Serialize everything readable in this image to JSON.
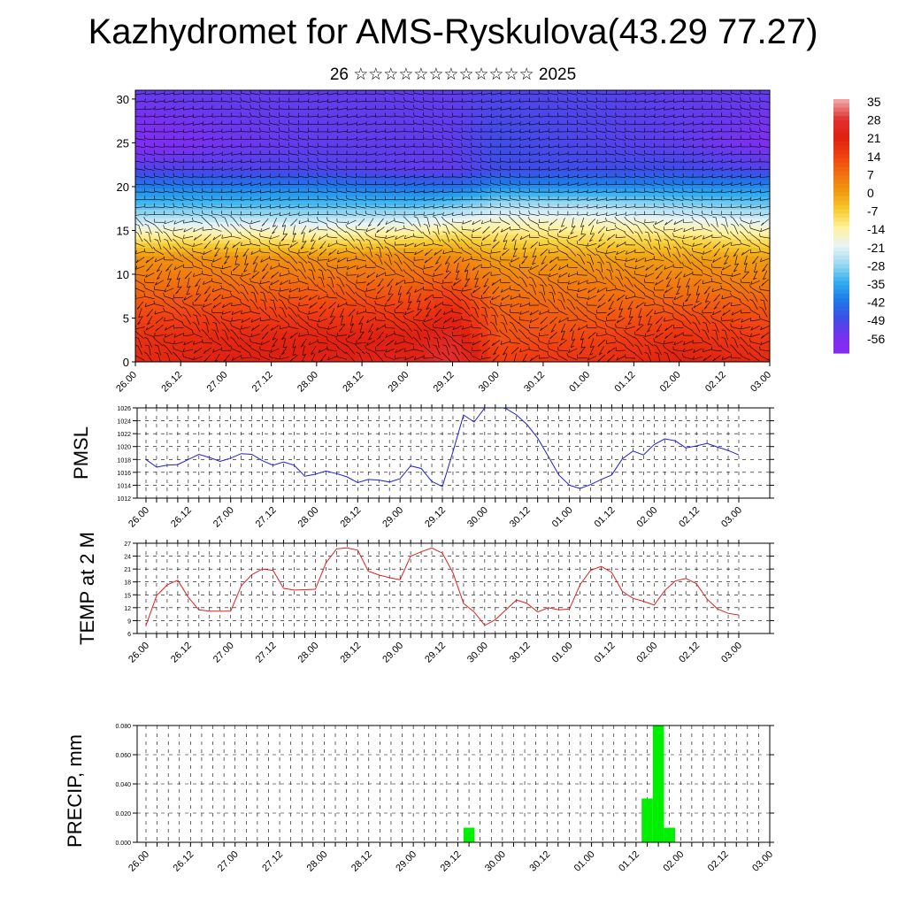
{
  "header": {
    "title": "Kazhydromet for AMS-Ryskulova(43.29 77.27)",
    "subtitle": "26 ☆☆☆☆☆☆☆☆☆☆☆☆ 2025"
  },
  "colors": {
    "pmsl_line": "#1f1fd6",
    "temp_line": "#e02020",
    "precip_bar": "#00ee00",
    "wind_barbs": "#000000"
  },
  "chart_data": [
    {
      "type": "heatmap",
      "name": "cross-section",
      "variable": "temperature",
      "overlay": "wind barbs",
      "x_ticks": [
        "26.00",
        "26.12",
        "27.00",
        "27.12",
        "28.00",
        "28.12",
        "29.00",
        "29.12",
        "30.00",
        "30.12",
        "01.00",
        "01.12",
        "02.00",
        "02.12",
        "03.00"
      ],
      "y_ticks": [
        0,
        5,
        10,
        15,
        20,
        25,
        30
      ],
      "ylim": [
        0,
        31
      ],
      "colorbar_labels": [
        35,
        28,
        21,
        14,
        7,
        0,
        -7,
        -14,
        -21,
        -28,
        -35,
        -42,
        -49,
        -56
      ],
      "colorbar_colors": [
        "#f0a0a0",
        "#e03030",
        "#e02010",
        "#f04010",
        "#f07010",
        "#f09a10",
        "#f6cc30",
        "#fff2a0",
        "#e8f4f8",
        "#9ad8f0",
        "#30aef0",
        "#2077e8",
        "#3f4de8",
        "#7a30f0",
        "#8a2af2"
      ],
      "profiles": [
        {
          "t": 0,
          "levels": [
            [
              0,
              22
            ],
            [
              3,
              20
            ],
            [
              6,
              15
            ],
            [
              9,
              10
            ],
            [
              12,
              4
            ],
            [
              14,
              -8
            ],
            [
              16,
              -20
            ],
            [
              18,
              -30
            ],
            [
              20,
              -38
            ],
            [
              22,
              -48
            ],
            [
              25,
              -56
            ],
            [
              31,
              -50
            ]
          ]
        },
        {
          "t": 1,
          "levels": [
            [
              0,
              24
            ],
            [
              3,
              22
            ],
            [
              6,
              16
            ],
            [
              9,
              10
            ],
            [
              12,
              4
            ],
            [
              14,
              -8
            ],
            [
              16,
              -20
            ],
            [
              18,
              -30
            ],
            [
              20,
              -38
            ],
            [
              22,
              -48
            ],
            [
              25,
              -52
            ],
            [
              31,
              -50
            ]
          ]
        },
        {
          "t": 2,
          "levels": [
            [
              0,
              25
            ],
            [
              3,
              23
            ],
            [
              6,
              17
            ],
            [
              9,
              11
            ],
            [
              12,
              4
            ],
            [
              14,
              -8
            ],
            [
              16,
              -20
            ],
            [
              18,
              -30
            ],
            [
              20,
              -38
            ],
            [
              22,
              -48
            ],
            [
              25,
              -50
            ],
            [
              31,
              -50
            ]
          ]
        },
        {
          "t": 3.1,
          "levels": [
            [
              0,
              26
            ],
            [
              3,
              24
            ],
            [
              6,
              18
            ],
            [
              9,
              12
            ],
            [
              12,
              6
            ],
            [
              14,
              -6
            ],
            [
              16,
              -18
            ],
            [
              18,
              -30
            ],
            [
              20,
              -40
            ],
            [
              22,
              -50
            ],
            [
              25,
              -50
            ],
            [
              31,
              -50
            ]
          ]
        },
        {
          "t": 3.5,
          "levels": [
            [
              0,
              32
            ],
            [
              3,
              28
            ],
            [
              6,
              22
            ],
            [
              9,
              14
            ],
            [
              12,
              6
            ],
            [
              14,
              -4
            ],
            [
              16,
              -16
            ],
            [
              18,
              -28
            ],
            [
              20,
              -40
            ],
            [
              22,
              -50
            ],
            [
              25,
              -50
            ],
            [
              31,
              -50
            ]
          ]
        },
        {
          "t": 4,
          "levels": [
            [
              0,
              18
            ],
            [
              3,
              14
            ],
            [
              6,
              12
            ],
            [
              9,
              8
            ],
            [
              12,
              2
            ],
            [
              14,
              -6
            ],
            [
              16,
              -14
            ],
            [
              18,
              -24
            ],
            [
              20,
              -36
            ],
            [
              22,
              -46
            ],
            [
              25,
              -46
            ],
            [
              31,
              -48
            ]
          ]
        },
        {
          "t": 5,
          "levels": [
            [
              0,
              20
            ],
            [
              3,
              16
            ],
            [
              6,
              12
            ],
            [
              9,
              8
            ],
            [
              12,
              2
            ],
            [
              14,
              -6
            ],
            [
              16,
              -14
            ],
            [
              18,
              -24
            ],
            [
              20,
              -36
            ],
            [
              22,
              -46
            ],
            [
              25,
              -48
            ],
            [
              31,
              -48
            ]
          ]
        },
        {
          "t": 6,
          "levels": [
            [
              0,
              24
            ],
            [
              3,
              20
            ],
            [
              6,
              14
            ],
            [
              9,
              8
            ],
            [
              12,
              2
            ],
            [
              14,
              -6
            ],
            [
              16,
              -16
            ],
            [
              18,
              -26
            ],
            [
              20,
              -36
            ],
            [
              22,
              -46
            ],
            [
              25,
              -50
            ],
            [
              31,
              -50
            ]
          ]
        },
        {
          "t": 7,
          "levels": [
            [
              0,
              22
            ],
            [
              3,
              18
            ],
            [
              6,
              14
            ],
            [
              9,
              8
            ],
            [
              12,
              2
            ],
            [
              14,
              -8
            ],
            [
              16,
              -18
            ],
            [
              18,
              -28
            ],
            [
              20,
              -36
            ],
            [
              22,
              -48
            ],
            [
              25,
              -54
            ],
            [
              31,
              -50
            ]
          ]
        }
      ]
    },
    {
      "type": "line",
      "name": "pmsl",
      "ylabel": "PMSL",
      "ylim": [
        1012,
        1026
      ],
      "y_ticks": [
        1012,
        1014,
        1016,
        1018,
        1020,
        1022,
        1024,
        1026
      ],
      "x_ticks": [
        "26.00",
        "26.12",
        "27.00",
        "27.12",
        "28.00",
        "28.12",
        "29.00",
        "29.12",
        "30.00",
        "30.12",
        "01.00",
        "01.12",
        "02.00",
        "02.12",
        "03.00"
      ],
      "values": [
        1018,
        1016.8,
        1017.1,
        1017.2,
        1018,
        1018.8,
        1018.3,
        1017.7,
        1018.2,
        1018.9,
        1018.8,
        1017.8,
        1017.1,
        1017.6,
        1017.1,
        1015.4,
        1015.7,
        1016.2,
        1015.8,
        1015.3,
        1014.4,
        1014.9,
        1014.8,
        1014.5,
        1015,
        1017,
        1016.6,
        1014.6,
        1013.8,
        1019.2,
        1024.9,
        1023.8,
        1026,
        1026.2,
        1025.9,
        1024.9,
        1023.4,
        1021.3,
        1018.5,
        1015.6,
        1014,
        1013.5,
        1014.1,
        1014.9,
        1015.6,
        1018.1,
        1019.3,
        1018.7,
        1020.3,
        1021.2,
        1020.9,
        1019.8,
        1020.1,
        1020.5,
        1019.9,
        1019.4,
        1018.7
      ]
    },
    {
      "type": "line",
      "name": "temp",
      "ylabel": "TEMP at 2 M",
      "ylim": [
        6,
        27
      ],
      "y_ticks": [
        6,
        9,
        12,
        15,
        18,
        21,
        24,
        27
      ],
      "x_ticks": [
        "26.00",
        "26.12",
        "27.00",
        "27.12",
        "28.00",
        "28.12",
        "29.00",
        "29.12",
        "30.00",
        "30.12",
        "01.00",
        "01.12",
        "02.00",
        "02.12",
        "03.00"
      ],
      "values": [
        7.9,
        14.8,
        17.3,
        18.4,
        14.4,
        11.5,
        11.2,
        11.2,
        11.2,
        17.1,
        19.7,
        21,
        20.7,
        16.5,
        16.1,
        16.2,
        16.3,
        22.4,
        25.7,
        25.9,
        25.4,
        20.5,
        19.6,
        19,
        18.5,
        24,
        25,
        25.9,
        24.7,
        20.1,
        13,
        11,
        7.9,
        9.2,
        11.5,
        13.8,
        13,
        11,
        12,
        11.5,
        11.7,
        17.3,
        20.7,
        21.6,
        20.2,
        15.8,
        14.2,
        13.5,
        12.6,
        16,
        18.2,
        18.8,
        17.6,
        14,
        11.7,
        10.7,
        10.3
      ]
    },
    {
      "type": "bar",
      "name": "precip",
      "ylabel": "PRECIP, mm",
      "ylim": [
        0,
        0.08
      ],
      "y_ticks": [
        "0.000",
        "0.020",
        "0.040",
        "0.060",
        "0.080"
      ],
      "x_ticks": [
        "26.00",
        "26.12",
        "27.00",
        "27.12",
        "28.00",
        "28.12",
        "29.00",
        "29.12",
        "30.00",
        "30.12",
        "01.00",
        "01.12",
        "02.00",
        "02.12",
        "03.00"
      ],
      "bars": [
        {
          "t": 3.625,
          "value": 0.01
        },
        {
          "t": 5.625,
          "value": 0.03
        },
        {
          "t": 5.75,
          "value": 0.08
        },
        {
          "t": 5.875,
          "value": 0.01
        }
      ]
    }
  ]
}
